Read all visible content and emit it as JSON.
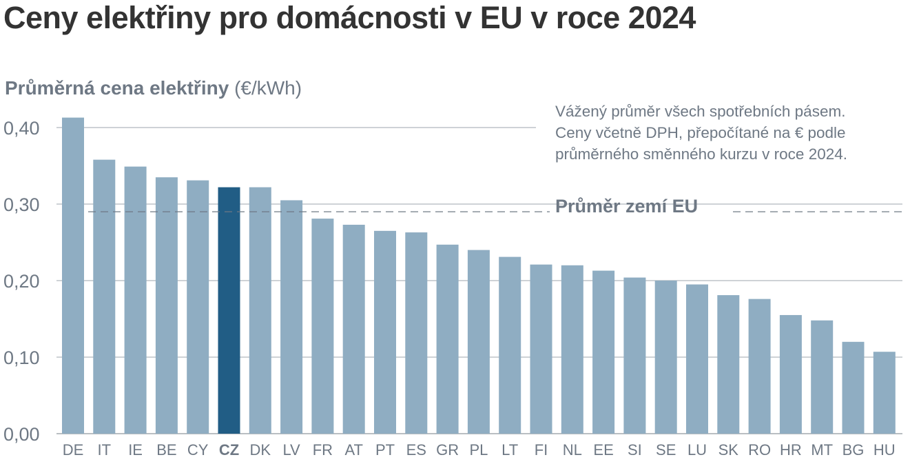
{
  "chart_data": {
    "type": "bar",
    "title": "Ceny elektřiny pro domácnosti v EU v roce 2024",
    "ylabel_bold": "Průměrná cena elektřiny",
    "ylabel_unit": "(€/kWh)",
    "note_lines": [
      "Vážený průměr všech spotřebních pásem.",
      "Ceny včetně DPH, přepočítané na € podle",
      "průměrného směnného kurzu v roce 2024."
    ],
    "ylim": [
      0,
      0.4
    ],
    "yticks": [
      0,
      0.1,
      0.2,
      0.3,
      0.4
    ],
    "ytick_labels": [
      "0,00",
      "0,10",
      "0,20",
      "0,30",
      "0,40"
    ],
    "categories": [
      "DE",
      "IT",
      "IE",
      "BE",
      "CY",
      "CZ",
      "DK",
      "LV",
      "FR",
      "AT",
      "PT",
      "ES",
      "GR",
      "PL",
      "LT",
      "FI",
      "NL",
      "EE",
      "SI",
      "SE",
      "LU",
      "SK",
      "RO",
      "HR",
      "MT",
      "BG",
      "HU"
    ],
    "values": [
      0.413,
      0.358,
      0.349,
      0.335,
      0.331,
      0.322,
      0.322,
      0.305,
      0.281,
      0.273,
      0.265,
      0.263,
      0.247,
      0.24,
      0.231,
      0.221,
      0.22,
      0.213,
      0.204,
      0.2,
      0.195,
      0.181,
      0.176,
      0.155,
      0.148,
      0.12,
      0.107
    ],
    "highlight": "CZ",
    "average": 0.29,
    "average_label": "Průměr zemí EU",
    "grid": true,
    "colors": {
      "bar": "#8fadc2",
      "highlight": "#215d85",
      "grid": "#b0b6be",
      "average_line": "#6e7884",
      "text": "#6e7884",
      "title": "#333333"
    }
  }
}
